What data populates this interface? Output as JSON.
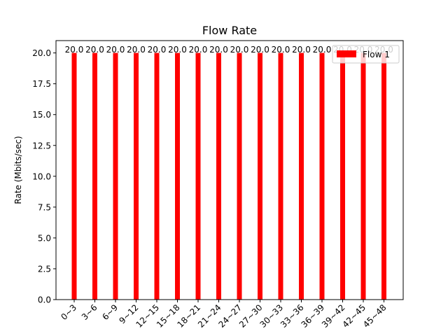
{
  "chart_data": {
    "type": "bar",
    "title": "Flow Rate",
    "xlabel": "",
    "ylabel": "Rate (Mbits/sec)",
    "categories": [
      "0~3",
      "3~6",
      "6~9",
      "9~12",
      "12~15",
      "15~18",
      "18~21",
      "21~24",
      "24~27",
      "27~30",
      "30~33",
      "33~36",
      "36~39",
      "39~42",
      "42~45",
      "45~48"
    ],
    "series": [
      {
        "name": "Flow 1",
        "values": [
          20.0,
          20.0,
          20.0,
          20.0,
          20.0,
          20.0,
          20.0,
          20.0,
          20.0,
          20.0,
          20.0,
          20.0,
          20.0,
          20.0,
          20.0,
          20.0
        ],
        "color": "#ff0000"
      }
    ],
    "ylim": [
      0,
      21
    ],
    "yticks": [
      0.0,
      2.5,
      5.0,
      7.5,
      10.0,
      12.5,
      15.0,
      17.5,
      20.0
    ],
    "ytick_labels": [
      "0.0",
      "2.5",
      "5.0",
      "7.5",
      "10.0",
      "12.5",
      "15.0",
      "17.5",
      "20.0"
    ],
    "data_labels": [
      "20.0",
      "20.0",
      "20.0",
      "20.0",
      "20.0",
      "20.0",
      "20.0",
      "20.0",
      "20.0",
      "20.0",
      "20.0",
      "20.0",
      "20.0",
      "20.0",
      "20.0",
      "20.0"
    ],
    "grid": false,
    "legend": {
      "position": "upper-right"
    }
  }
}
